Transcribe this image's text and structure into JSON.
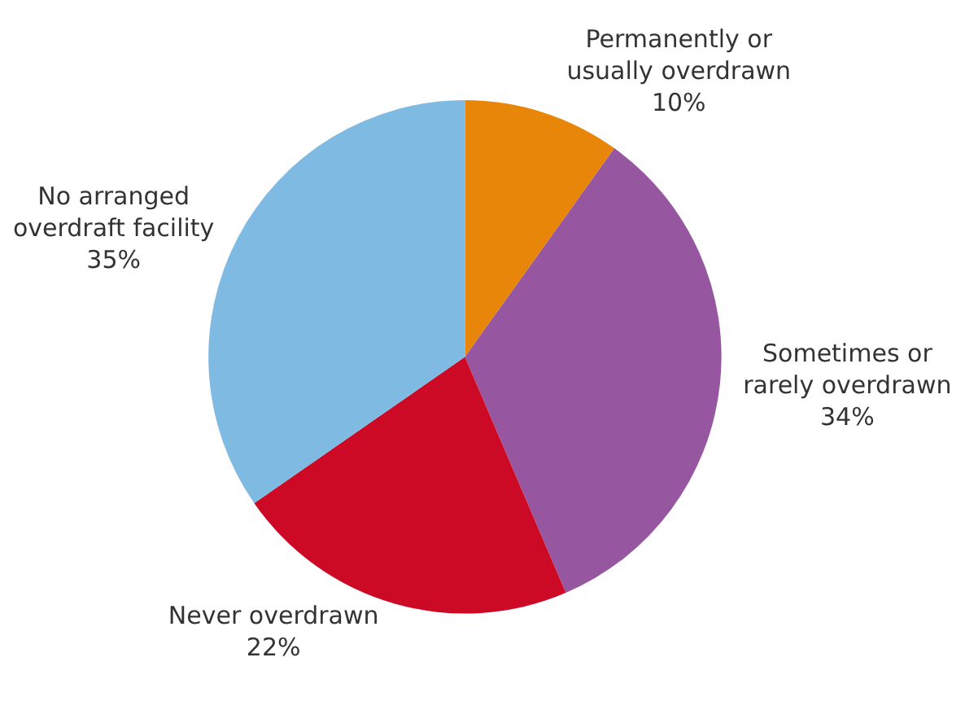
{
  "chart_data": {
    "type": "pie",
    "categories": [
      "Permanently or usually overdrawn",
      "Sometimes or rarely overdrawn",
      "Never overdrawn",
      "No arranged overdraft facility"
    ],
    "values": [
      10,
      34,
      22,
      35
    ],
    "value_labels": [
      "10%",
      "34%",
      "22%",
      "35%"
    ],
    "colors": [
      "#e8860a",
      "#9657a0",
      "#cc0a26",
      "#7fbae3"
    ],
    "legend": false
  }
}
